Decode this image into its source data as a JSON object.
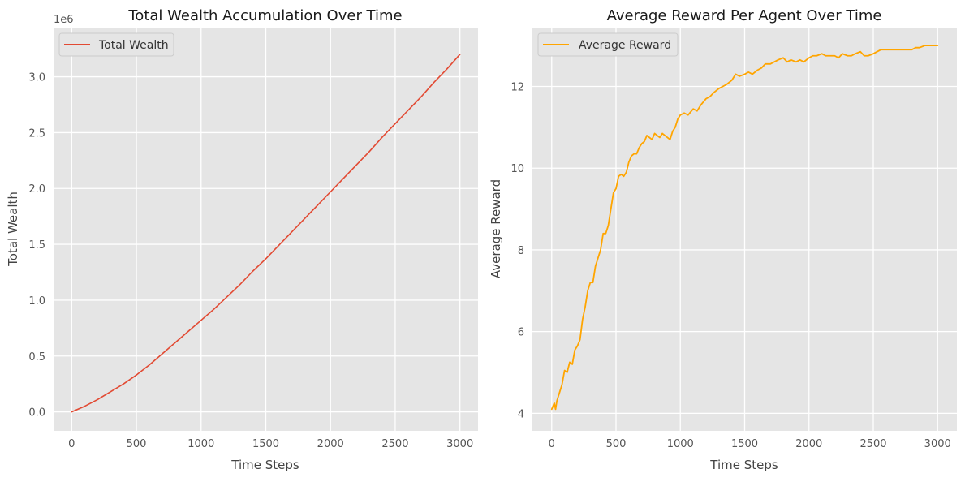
{
  "chart_data": [
    {
      "type": "line",
      "title": "Total Wealth Accumulation Over Time",
      "xlabel": "Time Steps",
      "ylabel": "Total Wealth",
      "y_scale_label": "1e6",
      "xlim": [
        -140,
        3140
      ],
      "ylim": [
        -0.17,
        3.44
      ],
      "x_ticks": [
        0,
        500,
        1000,
        1500,
        2000,
        2500,
        3000
      ],
      "x_tick_labels": [
        "0",
        "500",
        "1000",
        "1500",
        "2000",
        "2500",
        "3000"
      ],
      "y_ticks": [
        0.0,
        0.5,
        1.0,
        1.5,
        2.0,
        2.5,
        3.0
      ],
      "y_tick_labels": [
        "0.0",
        "0.5",
        "1.0",
        "1.5",
        "2.0",
        "2.5",
        "3.0"
      ],
      "grid": true,
      "legend_position": "top-left",
      "series": [
        {
          "name": "Total Wealth",
          "color": "#e24a33",
          "x": [
            0,
            100,
            200,
            300,
            400,
            500,
            600,
            700,
            800,
            900,
            1000,
            1100,
            1200,
            1300,
            1400,
            1500,
            1600,
            1700,
            1800,
            1900,
            2000,
            2100,
            2200,
            2300,
            2400,
            2500,
            2600,
            2700,
            2800,
            2900,
            3000
          ],
          "y": [
            0.0,
            0.05,
            0.11,
            0.18,
            0.25,
            0.33,
            0.42,
            0.52,
            0.62,
            0.72,
            0.82,
            0.92,
            1.03,
            1.14,
            1.26,
            1.37,
            1.49,
            1.61,
            1.73,
            1.85,
            1.97,
            2.09,
            2.21,
            2.33,
            2.46,
            2.58,
            2.7,
            2.82,
            2.95,
            3.07,
            3.2
          ]
        }
      ]
    },
    {
      "type": "line",
      "title": "Average Reward Per Agent Over Time",
      "xlabel": "Time Steps",
      "ylabel": "Average Reward",
      "xlim": [
        -150,
        3150
      ],
      "ylim": [
        3.57,
        13.44
      ],
      "x_ticks": [
        0,
        500,
        1000,
        1500,
        2000,
        2500,
        3000
      ],
      "x_tick_labels": [
        "0",
        "500",
        "1000",
        "1500",
        "2000",
        "2500",
        "3000"
      ],
      "y_ticks": [
        4,
        6,
        8,
        10,
        12
      ],
      "y_tick_labels": [
        "4",
        "6",
        "8",
        "10",
        "12"
      ],
      "grid": true,
      "legend_position": "top-left",
      "series": [
        {
          "name": "Average Reward",
          "color": "#ffa500",
          "x": [
            0,
            20,
            30,
            40,
            60,
            80,
            100,
            120,
            140,
            160,
            180,
            200,
            220,
            240,
            260,
            280,
            300,
            320,
            340,
            360,
            380,
            400,
            420,
            440,
            460,
            480,
            500,
            520,
            540,
            560,
            580,
            600,
            620,
            640,
            660,
            680,
            700,
            720,
            740,
            760,
            780,
            800,
            820,
            840,
            860,
            880,
            900,
            920,
            940,
            960,
            980,
            1000,
            1030,
            1060,
            1100,
            1130,
            1160,
            1200,
            1230,
            1260,
            1300,
            1330,
            1360,
            1400,
            1430,
            1460,
            1500,
            1530,
            1560,
            1600,
            1630,
            1660,
            1700,
            1730,
            1760,
            1800,
            1830,
            1860,
            1900,
            1930,
            1960,
            2000,
            2030,
            2060,
            2100,
            2130,
            2160,
            2200,
            2230,
            2260,
            2300,
            2330,
            2360,
            2400,
            2430,
            2460,
            2500,
            2530,
            2560,
            2600,
            2630,
            2660,
            2700,
            2730,
            2760,
            2800,
            2830,
            2860,
            2900,
            2930,
            2960,
            3000
          ],
          "y": [
            4.1,
            4.25,
            4.1,
            4.3,
            4.5,
            4.7,
            5.05,
            5.0,
            5.25,
            5.2,
            5.55,
            5.65,
            5.8,
            6.3,
            6.6,
            7.0,
            7.2,
            7.2,
            7.6,
            7.8,
            8.0,
            8.4,
            8.4,
            8.6,
            9.0,
            9.4,
            9.5,
            9.8,
            9.85,
            9.8,
            9.9,
            10.15,
            10.3,
            10.35,
            10.35,
            10.5,
            10.6,
            10.65,
            10.8,
            10.75,
            10.7,
            10.85,
            10.8,
            10.75,
            10.85,
            10.8,
            10.75,
            10.7,
            10.9,
            11.0,
            11.2,
            11.3,
            11.35,
            11.3,
            11.45,
            11.4,
            11.55,
            11.7,
            11.75,
            11.85,
            11.95,
            12.0,
            12.05,
            12.15,
            12.3,
            12.25,
            12.3,
            12.35,
            12.3,
            12.4,
            12.45,
            12.55,
            12.55,
            12.6,
            12.65,
            12.7,
            12.6,
            12.65,
            12.6,
            12.65,
            12.6,
            12.7,
            12.75,
            12.75,
            12.8,
            12.75,
            12.75,
            12.75,
            12.7,
            12.8,
            12.75,
            12.75,
            12.8,
            12.85,
            12.75,
            12.75,
            12.8,
            12.85,
            12.9,
            12.9,
            12.9,
            12.9,
            12.9,
            12.9,
            12.9,
            12.9,
            12.95,
            12.95,
            13.0,
            13.0,
            13.0,
            13.0
          ]
        }
      ]
    }
  ]
}
